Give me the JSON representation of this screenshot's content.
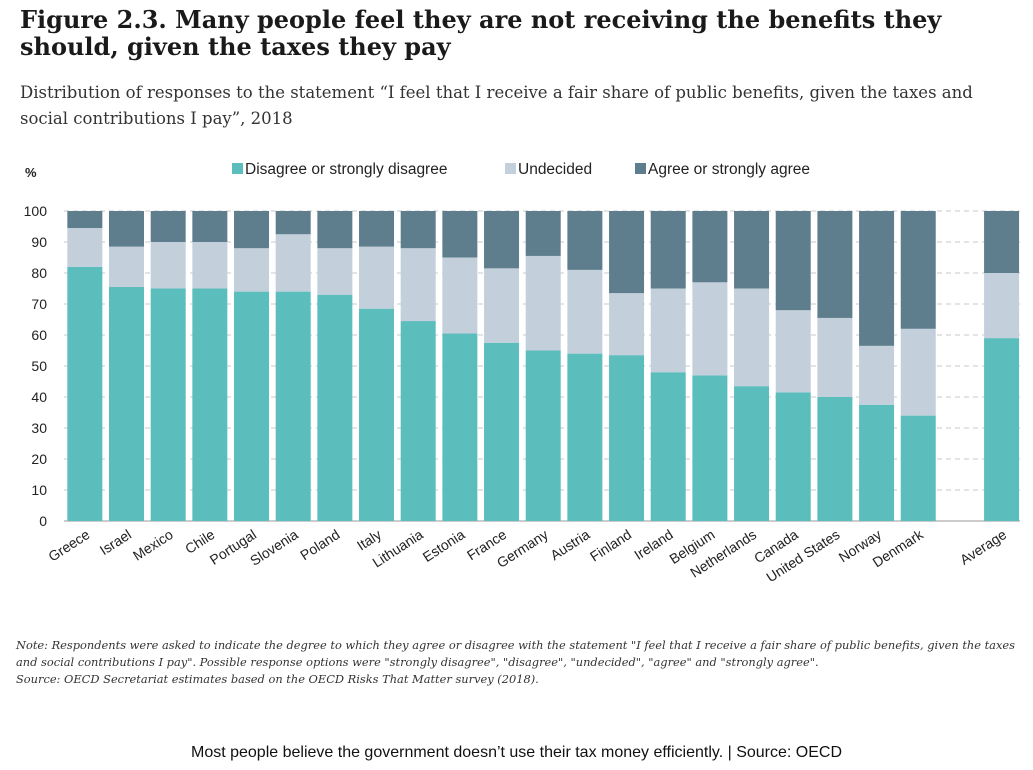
{
  "figure": {
    "title": "Figure 2.3. Many people feel they are not receiving the benefits they should, given the taxes they pay",
    "subtitle": "Distribution of responses to the statement “I feel that I receive a fair share of public benefits, given the taxes and social contributions I pay”, 2018",
    "note": "Note: Respondents were asked to indicate the degree to which they agree or disagree with the statement \"I feel that I receive a fair share of public benefits, given the taxes and social contributions I pay\". Possible response options were \"strongly disagree\", \"disagree\", \"undecided\", \"agree\" and \"strongly agree\".",
    "source": "Source: OECD Secretariat estimates based on the OECD Risks That Matter survey (2018).",
    "caption": "Most people believe the government doesn’t use their tax money efficiently. | Source: OECD"
  },
  "colors": {
    "disagree": "#5cbdbd",
    "undecided": "#c3d0db",
    "agree": "#5e7e8e",
    "grid": "#c8c8c8"
  },
  "chart_data": {
    "type": "bar",
    "stacked": true,
    "ylabel": "%",
    "ylim": [
      0,
      100
    ],
    "yticks": [
      0,
      10,
      20,
      30,
      40,
      50,
      60,
      70,
      80,
      90,
      100
    ],
    "grid": true,
    "legend_position": "top",
    "categories": [
      "Greece",
      "Israel",
      "Mexico",
      "Chile",
      "Portugal",
      "Slovenia",
      "Poland",
      "Italy",
      "Lithuania",
      "Estonia",
      "France",
      "Germany",
      "Austria",
      "Finland",
      "Ireland",
      "Belgium",
      "Netherlands",
      "Canada",
      "United States",
      "Norway",
      "Denmark",
      "",
      "Average"
    ],
    "series": [
      {
        "name": "Disagree or strongly disagree",
        "color_key": "disagree",
        "values": [
          82,
          75.5,
          75,
          75,
          74,
          74,
          73,
          68.5,
          64.5,
          60.5,
          57.5,
          55,
          54,
          53.5,
          48,
          47,
          43.5,
          41.5,
          40,
          37.5,
          34,
          null,
          59
        ]
      },
      {
        "name": "Undecided",
        "color_key": "undecided",
        "values": [
          12.5,
          13,
          15,
          15,
          14,
          18.5,
          15,
          20,
          23.5,
          24.5,
          24,
          30.5,
          27,
          20,
          27,
          30,
          31.5,
          26.5,
          25.5,
          19,
          28,
          null,
          21
        ]
      },
      {
        "name": "Agree or strongly agree",
        "color_key": "agree",
        "values": [
          5.5,
          11.5,
          10,
          10,
          12,
          7.5,
          12,
          11.5,
          12,
          15,
          18.5,
          14.5,
          19,
          26.5,
          25,
          23,
          25,
          32,
          34.5,
          43.5,
          38,
          null,
          20
        ]
      }
    ]
  }
}
